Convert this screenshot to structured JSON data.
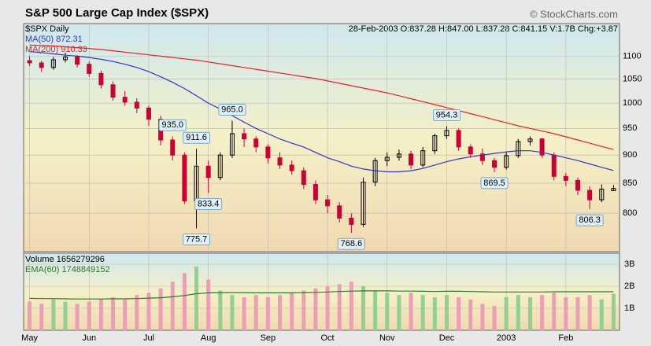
{
  "header": {
    "title": "S&P 500 Large Cap Index ($SPX)",
    "source": "© StockCharts.com",
    "info": "28-Feb-2003 O:837.28 H:847.00 L:837.28 C:841.15 V:1.7B Chg:+3.87"
  },
  "chart_data": [
    {
      "type": "candlestick",
      "name": "$SPX Daily",
      "log_scale": true,
      "grid": true,
      "up_color": "#000000",
      "down_color": "#cc0033",
      "categories": [
        "May",
        null,
        null,
        null,
        null,
        "Jun",
        null,
        null,
        null,
        null,
        "Jul",
        null,
        null,
        null,
        null,
        "Aug",
        null,
        null,
        null,
        null,
        "Sep",
        null,
        null,
        null,
        null,
        "Oct",
        null,
        null,
        null,
        null,
        "Nov",
        null,
        null,
        null,
        null,
        "Dec",
        null,
        null,
        null,
        null,
        "2003",
        null,
        null,
        null,
        null,
        "Feb",
        null,
        null,
        null,
        null
      ],
      "open": [
        1090,
        1085,
        1075,
        1092,
        1098,
        1082,
        1062,
        1038,
        1012,
        1002,
        990,
        968,
        928,
        900,
        820,
        880,
        860,
        900,
        940,
        930,
        915,
        895,
        882,
        872,
        848,
        822,
        812,
        792,
        782,
        852,
        890,
        896,
        902,
        882,
        908,
        936,
        946,
        915,
        902,
        890,
        878,
        899,
        925,
        930,
        900,
        862,
        855,
        838,
        822,
        837.28
      ],
      "high": [
        1100,
        1090,
        1098,
        1108,
        1102,
        1088,
        1068,
        1045,
        1025,
        1010,
        995,
        975,
        935,
        905,
        911.6,
        890,
        905,
        965.0,
        950,
        935,
        920,
        905,
        890,
        878,
        855,
        830,
        818,
        800,
        860,
        895,
        905,
        910,
        908,
        915,
        940,
        954.3,
        950,
        920,
        912,
        895,
        905,
        930,
        935.0,
        932,
        905,
        868,
        860,
        845,
        848,
        847.0
      ],
      "low": [
        1078,
        1065,
        1070,
        1086,
        1075,
        1055,
        1030,
        1005,
        995,
        980,
        955,
        918,
        890,
        815,
        775.7,
        833.4,
        855,
        895,
        915,
        905,
        885,
        875,
        865,
        840,
        815,
        800,
        785,
        768.6,
        778,
        845,
        880,
        890,
        875,
        878,
        902,
        930,
        908,
        895,
        882,
        869.5,
        874,
        895,
        918,
        895,
        855,
        845,
        830,
        806.3,
        818,
        837.28
      ],
      "close": [
        1085,
        1075,
        1092,
        1098,
        1082,
        1062,
        1038,
        1012,
        1002,
        990,
        968,
        928,
        900,
        820,
        880,
        860,
        900,
        940,
        930,
        915,
        895,
        882,
        872,
        848,
        822,
        812,
        792,
        782,
        852,
        890,
        896,
        902,
        882,
        908,
        936,
        946,
        915,
        902,
        890,
        878,
        899,
        925,
        930,
        900,
        862,
        855,
        838,
        822,
        840,
        841.15
      ],
      "series": [
        {
          "name": "MA(50) 872.31",
          "color": "#3333cc",
          "values": [
            1110,
            1108,
            1105,
            1102,
            1100,
            1097,
            1093,
            1088,
            1082,
            1075,
            1066,
            1055,
            1043,
            1030,
            1015,
            1000,
            988,
            975,
            962,
            950,
            940,
            930,
            922,
            915,
            905,
            895,
            888,
            880,
            875,
            872,
            870,
            870,
            872,
            876,
            882,
            888,
            893,
            897,
            900,
            903,
            906,
            908,
            908,
            905,
            900,
            895,
            890,
            884,
            878,
            872.31
          ]
        },
        {
          "name": "MA(200) 910.33",
          "color": "#e8202a",
          "values": [
            1125,
            1124,
            1123,
            1121,
            1119,
            1117,
            1115,
            1112,
            1109,
            1106,
            1103,
            1100,
            1097,
            1094,
            1091,
            1087,
            1083,
            1079,
            1075,
            1071,
            1067,
            1063,
            1059,
            1055,
            1051,
            1046,
            1041,
            1036,
            1031,
            1026,
            1021,
            1015,
            1009,
            1003,
            997,
            991,
            985,
            979,
            973,
            967,
            961,
            955,
            950,
            945,
            940,
            934,
            928,
            922,
            916,
            910.33
          ]
        }
      ],
      "annotations": [
        {
          "value": 775.7,
          "label": "775.7"
        },
        {
          "value": 911.6,
          "label": "911.6"
        },
        {
          "value": 833.4,
          "label": "833.4"
        },
        {
          "value": 965.0,
          "label": "965.0"
        },
        {
          "value": 768.6,
          "label": "768.6"
        },
        {
          "value": 954.3,
          "label": "954.3"
        },
        {
          "value": 869.5,
          "label": "869.5"
        },
        {
          "value": 935.0,
          "label": "935.0"
        },
        {
          "value": 806.3,
          "label": "806.3"
        }
      ],
      "ylim": [
        740,
        1175
      ],
      "yticks": [
        800,
        850,
        900,
        950,
        1000,
        1050,
        1100
      ]
    },
    {
      "type": "bar",
      "name": "Volume 1656279296",
      "up_color": "#8fd18f",
      "down_color": "#ec9fb4",
      "values": [
        1300000000.0,
        1200000000.0,
        1400000000.0,
        1300000000.0,
        1200000000.0,
        1300000000.0,
        1400000000.0,
        1500000000.0,
        1400000000.0,
        1600000000.0,
        1700000000.0,
        1900000000.0,
        2200000000.0,
        2600000000.0,
        2900000000.0,
        2300000000.0,
        1800000000.0,
        1600000000.0,
        1500000000.0,
        1600000000.0,
        1500000000.0,
        1600000000.0,
        1700000000.0,
        1800000000.0,
        1900000000.0,
        2000000000.0,
        2100000000.0,
        2200000000.0,
        2000000000.0,
        1800000000.0,
        1700000000.0,
        1600000000.0,
        1700000000.0,
        1600000000.0,
        1500000000.0,
        1600000000.0,
        1500000000.0,
        1400000000.0,
        1200000000.0,
        1100000000.0,
        1500000000.0,
        1600000000.0,
        1500000000.0,
        1600000000.0,
        1700000000.0,
        1500000000.0,
        1500000000.0,
        1600000000.0,
        1400000000.0,
        1656279296
      ],
      "series": [
        {
          "name": "EMA(60) 1748849152",
          "color": "#2a7a2a",
          "values": [
            1450000000.0,
            1440000000.0,
            1440000000.0,
            1430000000.0,
            1420000000.0,
            1420000000.0,
            1420000000.0,
            1430000000.0,
            1430000000.0,
            1440000000.0,
            1460000000.0,
            1480000000.0,
            1520000000.0,
            1580000000.0,
            1660000000.0,
            1700000000.0,
            1710000000.0,
            1710000000.0,
            1710000000.0,
            1700000000.0,
            1700000000.0,
            1700000000.0,
            1700000000.0,
            1710000000.0,
            1720000000.0,
            1740000000.0,
            1760000000.0,
            1780000000.0,
            1790000000.0,
            1790000000.0,
            1790000000.0,
            1780000000.0,
            1780000000.0,
            1770000000.0,
            1760000000.0,
            1770000000.0,
            1770000000.0,
            1760000000.0,
            1750000000.0,
            1740000000.0,
            1740000000.0,
            1740000000.0,
            1740000000.0,
            1740000000.0,
            1750000000.0,
            1750000000.0,
            1750000000.0,
            1750000000.0,
            1750000000.0,
            1748849152
          ]
        }
      ],
      "ylim": [
        0,
        3500000000.0
      ],
      "yticks": [
        {
          "value": 1000000000.0,
          "label": "1B"
        },
        {
          "value": 2000000000.0,
          "label": "2B"
        },
        {
          "value": 3000000000.0,
          "label": "3B"
        }
      ]
    }
  ]
}
